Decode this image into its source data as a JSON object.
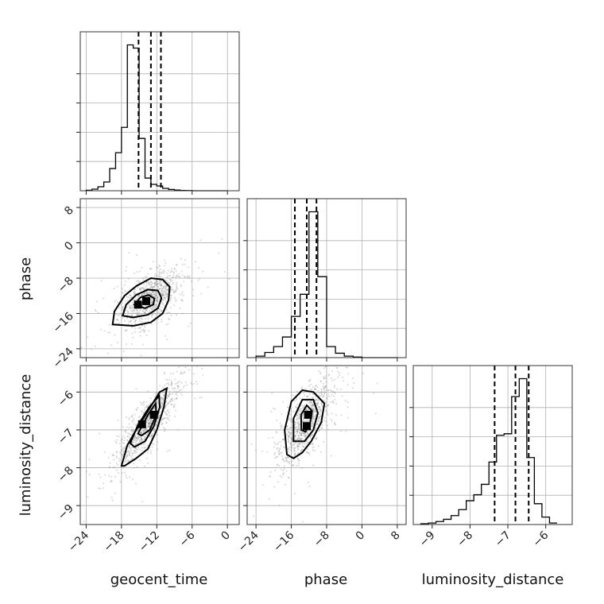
{
  "chart_data": {
    "type": "corner",
    "parameters": [
      "geocent_time",
      "phase",
      "luminosity_distance"
    ],
    "axis_labels": {
      "geocent_time": "geocent_time",
      "phase": "phase",
      "luminosity_distance": "luminosity_distance"
    },
    "ranges": {
      "geocent_time": [
        -25,
        2
      ],
      "phase": [
        -26,
        10
      ],
      "luminosity_distance": [
        -9.5,
        -5.3
      ]
    },
    "ticks": {
      "geocent_time": [
        -24,
        -18,
        -12,
        -6,
        0
      ],
      "phase": [
        -24,
        -16,
        -8,
        0,
        8
      ],
      "luminosity_distance": [
        -9,
        -8,
        -7,
        -6
      ]
    },
    "tick_labels": {
      "geocent_time": [
        "−24",
        "−18",
        "−12",
        "−6",
        "0"
      ],
      "phase": [
        "−24",
        "−16",
        "−8",
        "0",
        "8"
      ],
      "luminosity_distance": [
        "−9",
        "−8",
        "−7",
        "−6"
      ]
    },
    "quantiles": {
      "geocent_time": [
        -15.1,
        -13.0,
        -11.3
      ],
      "phase": [
        -15.2,
        -12.5,
        -10.3
      ],
      "luminosity_distance": [
        -7.35,
        -6.8,
        -6.45
      ]
    },
    "histograms": {
      "geocent_time": {
        "bin_edges": [
          -24,
          -23,
          -22,
          -21,
          -20,
          -19,
          -18,
          -17,
          -16,
          -15,
          -14,
          -13,
          -12,
          -11,
          -10,
          -9,
          -8,
          -7,
          -6,
          -5,
          -4,
          -3,
          -2,
          -1,
          0
        ],
        "counts": [
          0.003,
          0.01,
          0.025,
          0.055,
          0.14,
          0.24,
          0.4,
          0.92,
          0.9,
          0.33,
          0.08,
          0.04,
          0.03,
          0.015,
          0.008,
          0.004,
          0.002,
          0.001,
          0,
          0,
          0,
          0,
          0,
          0
        ]
      },
      "phase": {
        "bin_edges": [
          -24,
          -22,
          -20,
          -18,
          -16,
          -14,
          -12,
          -10,
          -8,
          -6,
          -4,
          -2,
          0,
          2,
          4,
          6,
          8
        ],
        "counts": [
          0.01,
          0.035,
          0.075,
          0.14,
          0.28,
          0.43,
          0.99,
          0.55,
          0.075,
          0.03,
          0.01,
          0.004,
          0,
          0,
          0,
          0
        ]
      },
      "luminosity_distance": {
        "bin_edges": [
          -9.3,
          -9.1,
          -8.9,
          -8.7,
          -8.5,
          -8.3,
          -8.1,
          -7.9,
          -7.7,
          -7.5,
          -7.3,
          -7.1,
          -6.9,
          -6.7,
          -6.5,
          -6.3,
          -6.1,
          -5.9,
          -5.7
        ],
        "counts": [
          0.005,
          0.01,
          0.02,
          0.035,
          0.06,
          0.1,
          0.16,
          0.2,
          0.27,
          0.42,
          0.6,
          0.61,
          0.86,
          0.98,
          0.45,
          0.14,
          0.05,
          0.01
        ]
      }
    },
    "contours": {
      "geocent_time|phase": [
        {
          "level": "outer",
          "points": [
            [
              -19.5,
              -18.5
            ],
            [
              -19.2,
              -15.5
            ],
            [
              -17.5,
              -12.0
            ],
            [
              -15.5,
              -9.8
            ],
            [
              -13.0,
              -8.0
            ],
            [
              -11.0,
              -8.3
            ],
            [
              -9.8,
              -10.0
            ],
            [
              -10.0,
              -13.0
            ],
            [
              -11.0,
              -16.0
            ],
            [
              -13.0,
              -18.0
            ],
            [
              -16.0,
              -18.8
            ]
          ]
        },
        {
          "level": "middle",
          "points": [
            [
              -17.8,
              -16.5
            ],
            [
              -17.2,
              -14.0
            ],
            [
              -15.5,
              -11.8
            ],
            [
              -13.5,
              -10.6
            ],
            [
              -11.8,
              -10.8
            ],
            [
              -11.2,
              -12.5
            ],
            [
              -11.8,
              -14.8
            ],
            [
              -13.5,
              -16.3
            ],
            [
              -16.0,
              -16.9
            ]
          ]
        },
        {
          "level": "inner",
          "points": [
            [
              -15.8,
              -14.0
            ],
            [
              -14.8,
              -12.4
            ],
            [
              -13.4,
              -11.8
            ],
            [
              -12.4,
              -12.6
            ],
            [
              -12.6,
              -14.0
            ],
            [
              -14.0,
              -14.8
            ]
          ]
        }
      ],
      "geocent_time|luminosity_distance": [
        {
          "level": "outer",
          "points": [
            [
              -18.0,
              -7.95
            ],
            [
              -17.0,
              -7.4
            ],
            [
              -15.5,
              -7.0
            ],
            [
              -13.5,
              -6.5
            ],
            [
              -11.5,
              -6.0
            ],
            [
              -10.3,
              -5.9
            ],
            [
              -10.8,
              -6.4
            ],
            [
              -12.0,
              -7.0
            ],
            [
              -13.5,
              -7.5
            ],
            [
              -15.5,
              -7.75
            ],
            [
              -17.5,
              -7.95
            ]
          ]
        },
        {
          "level": "middle",
          "points": [
            [
              -16.5,
              -7.35
            ],
            [
              -15.3,
              -6.9
            ],
            [
              -13.3,
              -6.4
            ],
            [
              -11.6,
              -6.1
            ],
            [
              -11.5,
              -6.4
            ],
            [
              -12.5,
              -6.9
            ],
            [
              -14.0,
              -7.3
            ],
            [
              -15.8,
              -7.45
            ]
          ]
        },
        {
          "level": "inner",
          "points": [
            [
              -15.2,
              -7.1
            ],
            [
              -13.5,
              -6.6
            ],
            [
              -12.2,
              -6.3
            ],
            [
              -12.1,
              -6.6
            ],
            [
              -13.2,
              -7.0
            ],
            [
              -14.6,
              -7.15
            ]
          ]
        }
      ],
      "phase|luminosity_distance": [
        {
          "level": "outer",
          "points": [
            [
              -17.0,
              -7.65
            ],
            [
              -17.5,
              -7.0
            ],
            [
              -16.0,
              -6.25
            ],
            [
              -13.5,
              -5.95
            ],
            [
              -11.0,
              -6.0
            ],
            [
              -8.5,
              -6.3
            ],
            [
              -9.2,
              -6.8
            ],
            [
              -11.5,
              -7.3
            ],
            [
              -13.5,
              -7.6
            ],
            [
              -15.5,
              -7.75
            ]
          ]
        },
        {
          "level": "middle",
          "points": [
            [
              -15.5,
              -7.3
            ],
            [
              -15.5,
              -6.7
            ],
            [
              -13.5,
              -6.2
            ],
            [
              -11.0,
              -6.2
            ],
            [
              -10.0,
              -6.55
            ],
            [
              -11.0,
              -7.0
            ],
            [
              -13.0,
              -7.3
            ]
          ]
        },
        {
          "level": "inner",
          "points": [
            [
              -13.7,
              -7.0
            ],
            [
              -13.8,
              -6.6
            ],
            [
              -12.5,
              -6.35
            ],
            [
              -11.3,
              -6.5
            ],
            [
              -11.8,
              -6.85
            ],
            [
              -12.8,
              -7.05
            ]
          ]
        }
      ]
    },
    "density_peaks": {
      "geocent_time|phase": [
        [
          -13.8,
          -13.2
        ],
        [
          -15.2,
          -14.0
        ]
      ],
      "geocent_time|luminosity_distance": [
        [
          -12.5,
          -6.6
        ],
        [
          -14.5,
          -6.85
        ]
      ],
      "phase|luminosity_distance": [
        [
          -12.2,
          -6.6
        ],
        [
          -12.5,
          -6.9
        ]
      ]
    },
    "grid": true
  }
}
